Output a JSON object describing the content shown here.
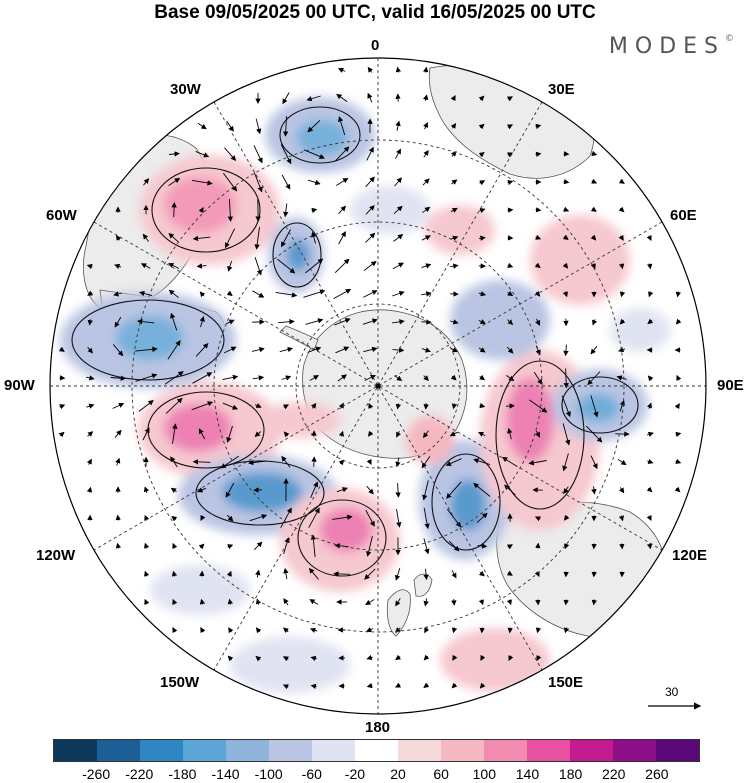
{
  "title": "Base 09/05/2025 00 UTC, valid 16/05/2025 00 UTC",
  "logo": "MODES",
  "logo_mark": "©",
  "longitude_labels": {
    "top": "0",
    "lon_30e": "30E",
    "lon_60e": "60E",
    "lon_90e": "90E",
    "lon_120e": "120E",
    "lon_150e": "150E",
    "bottom": "180",
    "lon_150w": "150W",
    "lon_120w": "120W",
    "lon_90w": "90W",
    "lon_60w": "60W",
    "lon_30w": "30W"
  },
  "vector_scale": {
    "label": "30"
  },
  "colorbar": {
    "colors": [
      "#0d3a5c",
      "#1b5f96",
      "#2f86c4",
      "#5ba6d6",
      "#8fb4dc",
      "#bac5e3",
      "#e0e3f1",
      "#ffffff",
      "#f6d9da",
      "#f5b7c0",
      "#f28bb0",
      "#e851a2",
      "#c31c91",
      "#8f0f88",
      "#5a087a"
    ],
    "ticks": [
      "-260",
      "-220",
      "-180",
      "-140",
      "-100",
      "-60",
      "-20",
      "20",
      "60",
      "100",
      "140",
      "180",
      "220",
      "260"
    ]
  },
  "colors": {
    "land": "#ececec",
    "grid": "#333333",
    "positive": "#f6c8cf",
    "negative": "#c6cce6"
  }
}
